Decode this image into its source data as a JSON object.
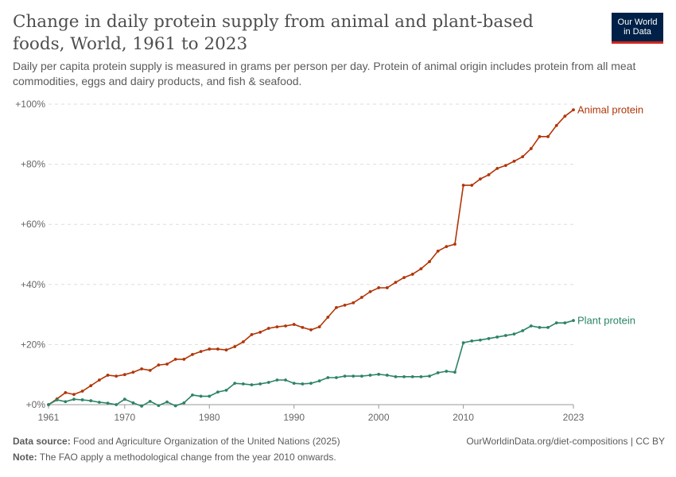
{
  "title": "Change in daily protein supply from animal and plant-based foods, World, 1961 to 2023",
  "subtitle": "Daily per capita protein supply is measured in grams per person per day. Protein of animal origin includes protein from all meat commodities, eggs and dairy products, and fish & seafood.",
  "logo": {
    "line1": "Our World",
    "line2": "in Data"
  },
  "footer": {
    "source_label": "Data source:",
    "source": "Food and Agriculture Organization of the United Nations (2025)",
    "url": "OurWorldinData.org/diet-compositions | CC BY",
    "note_label": "Note:",
    "note": "The FAO apply a methodological change from the year 2010 onwards."
  },
  "chart_data": {
    "type": "line",
    "title": "Change in daily protein supply from animal and plant-based foods, World, 1961 to 2023",
    "xlim": [
      1961,
      2023
    ],
    "ylim": [
      0,
      100
    ],
    "x_ticks": [
      1961,
      1970,
      1980,
      1990,
      2000,
      2010,
      2023
    ],
    "y_ticks": [
      0,
      20,
      40,
      60,
      80,
      100
    ],
    "y_tick_labels": [
      "+0%",
      "+20%",
      "+40%",
      "+60%",
      "+80%",
      "+100%"
    ],
    "grid": "horizontal dashed",
    "legend": "inline labels at line ends",
    "x": [
      1961,
      1962,
      1963,
      1964,
      1965,
      1966,
      1967,
      1968,
      1969,
      1970,
      1971,
      1972,
      1973,
      1974,
      1975,
      1976,
      1977,
      1978,
      1979,
      1980,
      1981,
      1982,
      1983,
      1984,
      1985,
      1986,
      1987,
      1988,
      1989,
      1990,
      1991,
      1992,
      1993,
      1994,
      1995,
      1996,
      1997,
      1998,
      1999,
      2000,
      2001,
      2002,
      2003,
      2004,
      2005,
      2006,
      2007,
      2008,
      2009,
      2010,
      2011,
      2012,
      2013,
      2014,
      2015,
      2016,
      2017,
      2018,
      2019,
      2020,
      2021,
      2022,
      2023
    ],
    "series": [
      {
        "name": "Animal protein",
        "color": "#b13507",
        "values": [
          0,
          1.9,
          4.0,
          3.4,
          4.5,
          6.3,
          8.2,
          9.8,
          9.5,
          10.0,
          10.8,
          11.9,
          11.4,
          13.2,
          13.5,
          15.1,
          15.1,
          16.7,
          17.7,
          18.5,
          18.5,
          18.2,
          19.3,
          20.9,
          23.3,
          24.1,
          25.4,
          25.9,
          26.2,
          26.7,
          25.7,
          24.9,
          25.9,
          29.1,
          32.3,
          33.1,
          33.9,
          35.7,
          37.6,
          38.9,
          38.9,
          40.7,
          42.3,
          43.4,
          45.2,
          47.6,
          51.1,
          52.6,
          53.4,
          73.0,
          73.0,
          75.1,
          76.5,
          78.6,
          79.6,
          81.0,
          82.5,
          85.2,
          89.2,
          89.2,
          92.9,
          96.0,
          98.1
        ]
      },
      {
        "name": "Plant protein",
        "color": "#2c8465",
        "values": [
          0,
          1.6,
          1.0,
          1.8,
          1.6,
          1.3,
          0.8,
          0.5,
          0,
          1.8,
          0.6,
          -0.5,
          1.1,
          -0.3,
          0.9,
          -0.4,
          0.6,
          3.2,
          2.8,
          2.8,
          4.2,
          4.8,
          7.1,
          6.9,
          6.6,
          6.9,
          7.4,
          8.2,
          8.2,
          7.1,
          6.9,
          7.1,
          7.9,
          9.0,
          9.0,
          9.5,
          9.5,
          9.5,
          9.8,
          10.1,
          9.8,
          9.3,
          9.3,
          9.3,
          9.3,
          9.5,
          10.6,
          11.1,
          10.8,
          20.6,
          21.2,
          21.5,
          22.0,
          22.5,
          23.0,
          23.5,
          24.6,
          26.2,
          25.7,
          25.7,
          27.2,
          27.2,
          28.0
        ]
      }
    ]
  }
}
